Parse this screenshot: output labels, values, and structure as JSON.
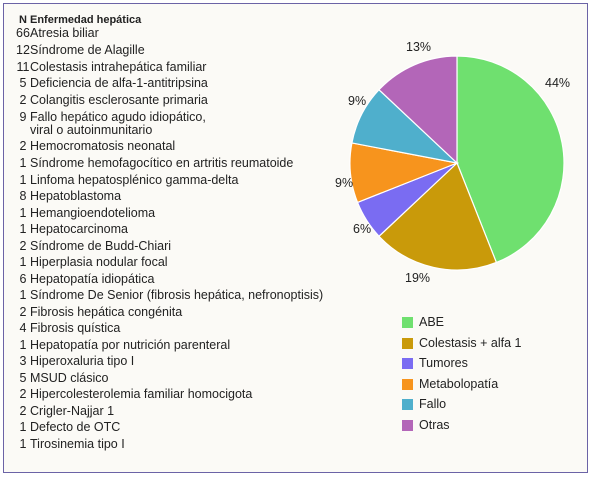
{
  "table": {
    "header_n": "N",
    "header_disease": "Enfermedad hepática",
    "rows": [
      {
        "n": "66",
        "disease": "Atresia biliar"
      },
      {
        "n": "12",
        "disease": "Síndrome de Alagille"
      },
      {
        "n": "11",
        "disease": "Colestasis intrahepática familiar"
      },
      {
        "n": "5",
        "disease": "Deficiencia de alfa-1-antitripsina"
      },
      {
        "n": "2",
        "disease": "Colangitis esclerosante primaria"
      },
      {
        "n": "9",
        "disease": "Fallo hepático agudo idiopático,\nviral o autoinmunitario"
      },
      {
        "n": "2",
        "disease": "Hemocromatosis neonatal"
      },
      {
        "n": "1",
        "disease": "Síndrome hemofagocítico en artritis reumatoide"
      },
      {
        "n": "1",
        "disease": "Linfoma hepatosplénico gamma-delta"
      },
      {
        "n": "8",
        "disease": "Hepatoblastoma"
      },
      {
        "n": "1",
        "disease": "Hemangioendotelioma"
      },
      {
        "n": "1",
        "disease": "Hepatocarcinoma"
      },
      {
        "n": "2",
        "disease": "Síndrome de Budd-Chiari"
      },
      {
        "n": "1",
        "disease": "Hiperplasia nodular focal"
      },
      {
        "n": "6",
        "disease": "Hepatopatía idiopática"
      },
      {
        "n": "1",
        "disease": "Síndrome De Senior (fibrosis hepática, nefronoptisis)"
      },
      {
        "n": "2",
        "disease": "Fibrosis hepática congénita"
      },
      {
        "n": "4",
        "disease": "Fibrosis quística"
      },
      {
        "n": "1",
        "disease": "Hepatopatía por nutrición parenteral"
      },
      {
        "n": "3",
        "disease": "Hiperoxaluria tipo I"
      },
      {
        "n": "5",
        "disease": "MSUD clásico"
      },
      {
        "n": "2",
        "disease": "Hipercolesterolemia familiar homocigota"
      },
      {
        "n": "2",
        "disease": "Crigler-Najjar 1"
      },
      {
        "n": "1",
        "disease": "Defecto de OTC"
      },
      {
        "n": "1",
        "disease": "Tirosinemia tipo I"
      }
    ]
  },
  "chart_data": {
    "type": "pie",
    "title": "",
    "legend_placement": "bottom-right",
    "slices": [
      {
        "name": "ABE",
        "value": 44,
        "label": "44%",
        "color": "#6fe06f"
      },
      {
        "name": "Colestasis + alfa 1",
        "value": 19,
        "label": "19%",
        "color": "#c99a0a"
      },
      {
        "name": "Tumores",
        "value": 6,
        "label": "6%",
        "color": "#7a6cf2"
      },
      {
        "name": "Metabolopatía",
        "value": 9,
        "label": "9%",
        "color": "#f7941d"
      },
      {
        "name": "Fallo",
        "value": 9,
        "label": "9%",
        "color": "#4fafcc"
      },
      {
        "name": "Otras",
        "value": 13,
        "label": "13%",
        "color": "#b366b8"
      }
    ]
  }
}
